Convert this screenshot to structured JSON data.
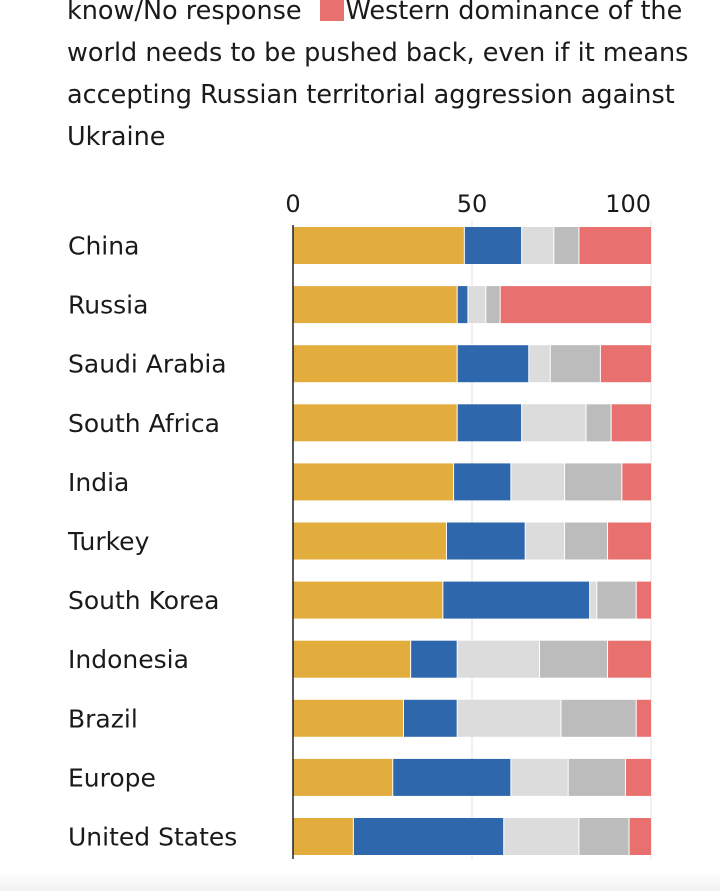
{
  "legend": {
    "item_dont_know": "know/No response",
    "item_western": "Western dominance of the world needs to be pushed back, even if it means accepting Russian territorial aggression against Ukraine",
    "item_western_color": "#e8706e"
  },
  "chart_data": {
    "type": "bar",
    "orientation": "horizontal",
    "stacked": true,
    "categories": [
      "China",
      "Russia",
      "Saudi Arabia",
      "South Africa",
      "India",
      "Turkey",
      "South Korea",
      "Indonesia",
      "Brazil",
      "Europe",
      "United States"
    ],
    "xlim": [
      0,
      100
    ],
    "xticks": [
      "0",
      "50",
      "100"
    ],
    "grid": true,
    "series": [
      {
        "color": "#e3ad3d",
        "values": [
          48,
          46,
          46,
          46,
          45,
          43,
          42,
          33,
          31,
          28,
          17
        ]
      },
      {
        "color": "#2e67ab",
        "values": [
          16,
          3,
          20,
          18,
          16,
          22,
          41,
          13,
          15,
          33,
          42
        ]
      },
      {
        "color": "#dcdcdc",
        "values": [
          9,
          5,
          6,
          18,
          15,
          11,
          2,
          23,
          29,
          16,
          21
        ]
      },
      {
        "color": "#bcbcbc",
        "values": [
          7,
          4,
          14,
          7,
          16,
          12,
          11,
          19,
          21,
          16,
          14
        ]
      },
      {
        "values": [
          20,
          42,
          14,
          11,
          8,
          12,
          4,
          12,
          4,
          7,
          6
        ]
      }
    ]
  }
}
